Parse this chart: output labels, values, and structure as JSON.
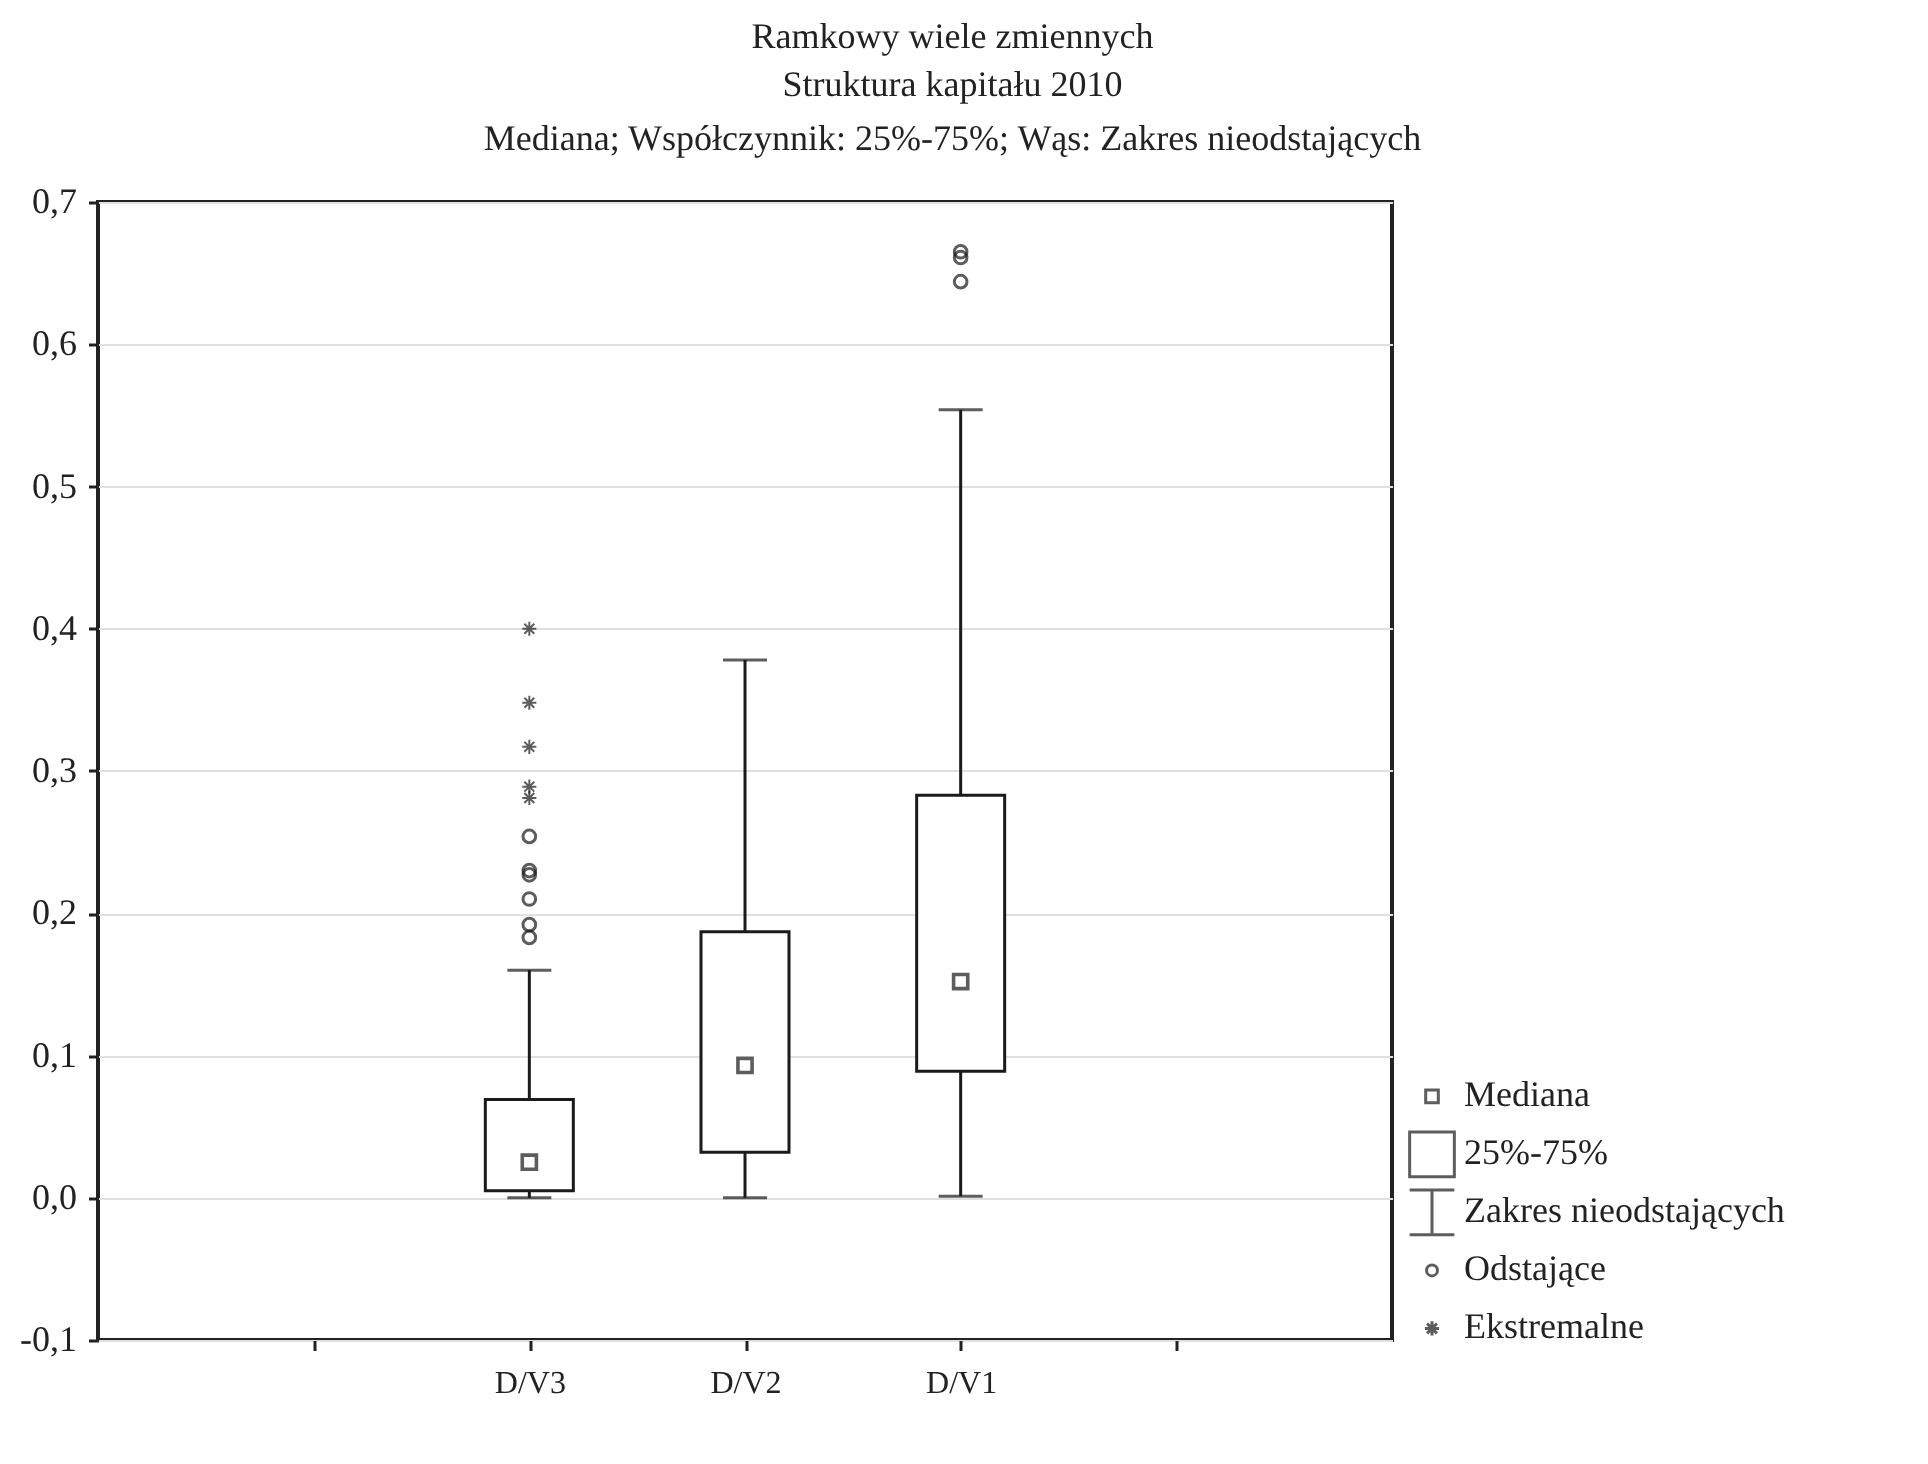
{
  "chart_data": {
    "type": "box",
    "title": "Ramkowy wiele zmiennych",
    "subtitle": "Struktura kapitału 2010\nMediana; Współczynnik: 25%-75%; Wąs: Zakres nieodstających",
    "categories": [
      null,
      "D/V3",
      "D/V2",
      "D/V1",
      null
    ],
    "series": [
      {
        "color": "#1a1a1a",
        "boxes": [
          null,
          {
            "low": 0.0,
            "q1": 0.005,
            "median": 0.025,
            "q3": 0.069,
            "high": 0.16,
            "outliers": [
              0.254,
              0.23,
              0.227,
              0.21,
              0.192,
              0.183
            ]
          },
          {
            "low": 0.0,
            "q1": 0.032,
            "median": 0.093,
            "q3": 0.187,
            "high": 0.378
          },
          {
            "low": 0.001,
            "q1": 0.089,
            "median": 0.152,
            "q3": 0.283,
            "high": 0.554,
            "outliers": [
              0.665,
              0.661,
              0.644
            ]
          },
          null
        ]
      },
      {
        "type": "scatter",
        "name": "Ekstremalne",
        "color": "#1a1a1a",
        "marker": "cross",
        "x": [
          "D/V3",
          "D/V3",
          "D/V3",
          "D/V3",
          "D/V3"
        ],
        "values": [
          0.4,
          0.348,
          0.317,
          0.289,
          0.281
        ]
      }
    ],
    "annotations": [
      "Mediana",
      "25%-75%",
      "Zakres nieodstających",
      "Odstające"
    ],
    "ylim": [
      -0.1,
      0.7
    ],
    "yticks": [
      {
        "value": -0.1,
        "label": "-0,1"
      },
      {
        "value": 0.0,
        "label": "0,0"
      },
      {
        "value": 0.1,
        "label": "0,1"
      },
      {
        "value": 0.2,
        "label": "0,2"
      },
      {
        "value": 0.3,
        "label": "0,3"
      },
      {
        "value": 0.4,
        "label": "0,4"
      },
      {
        "value": 0.5,
        "label": "0,5"
      },
      {
        "value": 0.6,
        "label": "0,6"
      },
      {
        "value": 0.7,
        "label": "0,7"
      }
    ],
    "grid": "y",
    "legend": "bottom right"
  }
}
